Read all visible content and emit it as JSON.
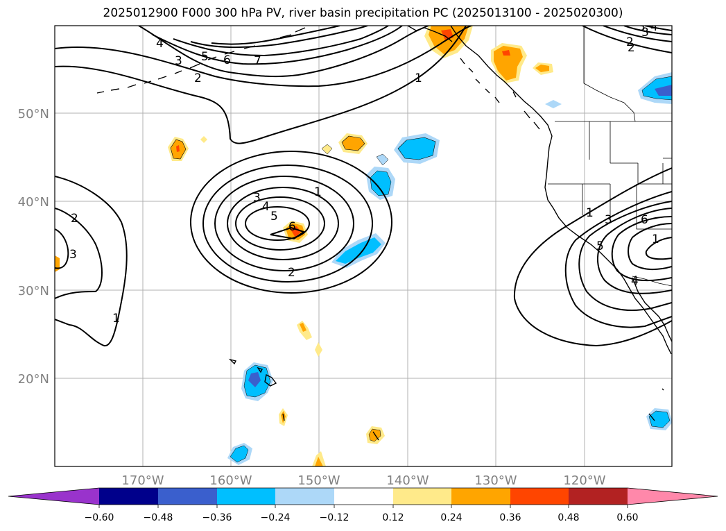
{
  "title": "2025012900 F000 300 hPa PV, river basin precipitation PC (2025013100 - 2025020300)",
  "map": {
    "lon_labels": [
      "170°W",
      "160°W",
      "150°W",
      "140°W",
      "130°W",
      "120°W"
    ],
    "lat_labels": [
      "50°N",
      "40°N",
      "30°N",
      "20°N"
    ],
    "label_color": "#808080",
    "contour_label_texts": [
      "4",
      "3",
      "2",
      "5",
      "6",
      "7",
      "1",
      "2",
      "3",
      "2",
      "3",
      "4",
      "5",
      "6",
      "1",
      "2",
      "3",
      "1",
      "2",
      "3",
      "4",
      "1",
      "3",
      "5",
      "6",
      "4",
      "1"
    ]
  },
  "colorbar": {
    "tick_labels": [
      "−0.60",
      "−0.48",
      "−0.36",
      "−0.24",
      "−0.12",
      "0.12",
      "0.24",
      "0.36",
      "0.48",
      "0.60"
    ],
    "colors": [
      "#9933cc",
      "#00008b",
      "#3a5fcd",
      "#00bfff",
      "#add8f8",
      "#ffffff",
      "#ffea8a",
      "#ffa500",
      "#ff4500",
      "#b22222",
      "#ff88aa"
    ]
  }
}
